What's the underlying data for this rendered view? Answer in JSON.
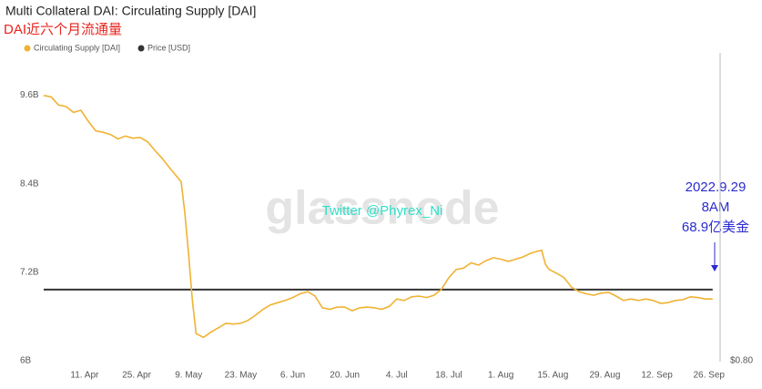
{
  "chart_data": {
    "type": "line",
    "title": "Multi Collateral DAI: Circulating Supply [DAI]",
    "subtitle": "DAI近六个月流通量",
    "x": [
      90,
      92,
      94,
      96,
      98,
      100,
      102,
      104,
      106,
      108,
      110,
      112,
      114,
      116,
      118,
      120,
      122,
      124,
      126,
      127,
      128,
      129,
      130,
      131,
      133,
      135,
      137,
      139,
      141,
      143,
      145,
      147,
      149,
      151,
      153,
      155,
      157,
      159,
      161,
      163,
      165,
      167,
      169,
      171,
      173,
      175,
      177,
      179,
      181,
      183,
      185,
      187,
      189,
      191,
      193,
      195,
      197,
      199,
      201,
      203,
      205,
      207,
      209,
      211,
      213,
      215,
      217,
      219,
      221,
      223,
      224,
      225,
      226,
      228,
      230,
      232,
      234,
      236,
      238,
      240,
      242,
      244,
      246,
      248,
      250,
      252,
      254,
      256,
      258,
      260,
      262,
      264,
      266,
      268,
      270
    ],
    "series": [
      {
        "name": "Circulating Supply [DAI]",
        "color": "#f0b232",
        "axis": "y",
        "values": [
          9.61,
          9.59,
          9.48,
          9.46,
          9.38,
          9.41,
          9.26,
          9.13,
          9.11,
          9.08,
          9.02,
          9.06,
          9.03,
          9.04,
          8.98,
          8.86,
          8.75,
          8.62,
          8.5,
          8.44,
          8.01,
          7.45,
          6.83,
          6.38,
          6.33,
          6.4,
          6.46,
          6.52,
          6.51,
          6.52,
          6.56,
          6.63,
          6.71,
          6.77,
          6.8,
          6.83,
          6.87,
          6.92,
          6.95,
          6.89,
          6.73,
          6.71,
          6.74,
          6.74,
          6.69,
          6.73,
          6.74,
          6.73,
          6.71,
          6.75,
          6.85,
          6.83,
          6.88,
          6.89,
          6.87,
          6.9,
          6.98,
          7.14,
          7.25,
          7.27,
          7.34,
          7.31,
          7.37,
          7.41,
          7.39,
          7.36,
          7.39,
          7.42,
          7.47,
          7.5,
          7.51,
          7.32,
          7.25,
          7.2,
          7.14,
          7.01,
          6.95,
          6.92,
          6.9,
          6.93,
          6.94,
          6.89,
          6.83,
          6.85,
          6.83,
          6.85,
          6.83,
          6.79,
          6.8,
          6.83,
          6.84,
          6.88,
          6.87,
          6.85,
          6.85
        ]
      },
      {
        "name": "Price [USD]",
        "color": "#333333",
        "axis": "y2",
        "values": [
          1,
          1,
          1,
          1,
          1,
          1,
          1,
          1,
          1,
          1,
          1,
          1,
          1,
          1,
          1,
          1,
          1,
          1,
          1,
          1,
          1,
          1,
          1,
          1,
          1,
          1,
          1,
          1,
          1,
          1,
          1,
          1,
          1,
          1,
          1,
          1,
          1,
          1,
          1,
          1,
          1,
          1,
          1,
          1,
          1,
          1,
          1,
          1,
          1,
          1,
          1,
          1,
          1,
          1,
          1,
          1,
          1,
          1,
          1,
          1,
          1,
          1,
          1,
          1,
          1,
          1,
          1,
          1,
          1,
          1,
          1,
          1,
          1,
          1,
          1,
          1,
          1,
          1,
          1,
          1,
          1,
          1,
          1,
          1,
          1,
          1,
          1,
          1,
          1,
          1,
          1,
          1,
          1,
          1,
          1
        ]
      }
    ],
    "xlim": [
      90,
      272
    ],
    "xticks": [
      {
        "value": 101,
        "label": "11. Apr"
      },
      {
        "value": 115,
        "label": "25. Apr"
      },
      {
        "value": 129,
        "label": "9. May"
      },
      {
        "value": 143,
        "label": "23. May"
      },
      {
        "value": 157,
        "label": "6. Jun"
      },
      {
        "value": 171,
        "label": "20. Jun"
      },
      {
        "value": 185,
        "label": "4. Jul"
      },
      {
        "value": 199,
        "label": "18. Jul"
      },
      {
        "value": 213,
        "label": "1. Aug"
      },
      {
        "value": 227,
        "label": "15. Aug"
      },
      {
        "value": 241,
        "label": "29. Aug"
      },
      {
        "value": 255,
        "label": "12. Sep"
      },
      {
        "value": 269,
        "label": "26. Sep"
      }
    ],
    "ylim": [
      6,
      10.2
    ],
    "yticks": [
      {
        "value": 6,
        "label": "6B"
      },
      {
        "value": 7.2,
        "label": "7.2B"
      },
      {
        "value": 8.4,
        "label": "8.4B"
      },
      {
        "value": 9.6,
        "label": "9.6B"
      }
    ],
    "y2lim": [
      0.8,
      1.66
    ],
    "y2ticks": [
      {
        "value": 0.8,
        "label": "$0.80"
      }
    ],
    "grid": false,
    "watermark": "glassnode",
    "annotations": [
      "Twitter @Phyrex_Ni",
      "2022.9.29",
      "8AM",
      "68.9亿美金"
    ]
  }
}
